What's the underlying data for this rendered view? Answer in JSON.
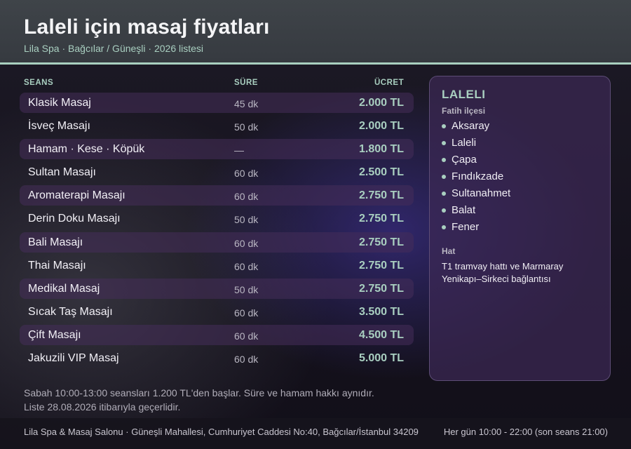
{
  "header": {
    "title": "Laleli için masaj fiyatları",
    "subtitle": "Lila Spa · Bağcılar / Güneşli · 2026 listesi"
  },
  "table": {
    "columns": {
      "service": "SEANS",
      "duration": "SÜRE",
      "price": "ÜCRET"
    },
    "rows": [
      {
        "service": "Klasik Masaj",
        "duration": "45 dk",
        "price": "2.000 TL"
      },
      {
        "service": "İsveç Masajı",
        "duration": "50 dk",
        "price": "2.000 TL"
      },
      {
        "service": "Hamam · Kese · Köpük",
        "duration": "—",
        "price": "1.800 TL"
      },
      {
        "service": "Sultan Masajı",
        "duration": "60 dk",
        "price": "2.500 TL"
      },
      {
        "service": "Aromaterapi Masajı",
        "duration": "60 dk",
        "price": "2.750 TL"
      },
      {
        "service": "Derin Doku Masajı",
        "duration": "50 dk",
        "price": "2.750 TL"
      },
      {
        "service": "Bali Masajı",
        "duration": "60 dk",
        "price": "2.750 TL"
      },
      {
        "service": "Thai Masajı",
        "duration": "60 dk",
        "price": "2.750 TL"
      },
      {
        "service": "Medikal Masaj",
        "duration": "50 dk",
        "price": "2.750 TL"
      },
      {
        "service": "Sıcak Taş Masajı",
        "duration": "60 dk",
        "price": "3.500 TL"
      },
      {
        "service": "Çift Masajı",
        "duration": "60 dk",
        "price": "4.500 TL"
      },
      {
        "service": "Jakuzili VIP Masaj",
        "duration": "60 dk",
        "price": "5.000 TL"
      }
    ]
  },
  "panel": {
    "title": "LALELI",
    "subtitle": "Fatih ilçesi",
    "districts": [
      "Aksaray",
      "Laleli",
      "Çapa",
      "Fındıkzade",
      "Sultanahmet",
      "Balat",
      "Fener"
    ],
    "transit_label": "Hat",
    "transit_text": "T1 tramvay hattı ve Marmaray Yenikapı–Sirkeci bağlantısı"
  },
  "notes": {
    "line1": "Sabah 10:00-13:00 seansları 1.200 TL'den başlar. Süre ve hamam hakkı aynıdır.",
    "line2": "Liste 28.08.2026 itibarıyla geçerlidir."
  },
  "footer": {
    "address": "Lila Spa & Masaj Salonu · Güneşli Mahallesi, Cumhuriyet Caddesi No:40, Bağcılar/İstanbul 34209",
    "hours": "Her gün 10:00 - 22:00 (son seans 21:00)"
  },
  "colors": {
    "accent": "#a9cfc0",
    "header_bg": "#3f4449",
    "row_shade": "#3e2a52",
    "panel_bg": "#3c2855"
  }
}
